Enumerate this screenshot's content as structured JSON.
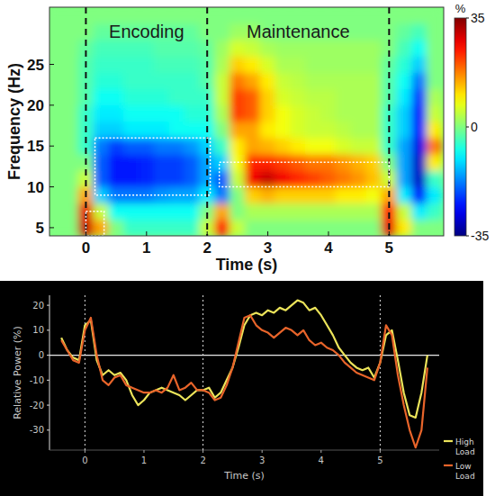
{
  "chart_data": [
    {
      "type": "heatmap",
      "x_label": "Time (s)",
      "y_label": "Frequency (Hz)",
      "xlim": [
        -0.6,
        5.9
      ],
      "xticks": [
        0,
        1,
        2,
        3,
        4,
        5
      ],
      "ylim": [
        4,
        32
      ],
      "yticks": [
        5,
        10,
        15,
        20,
        25
      ],
      "x": [
        -0.5,
        -0.25,
        0,
        0.25,
        0.5,
        0.75,
        1,
        1.25,
        1.5,
        1.75,
        2,
        2.25,
        2.5,
        2.75,
        3,
        3.25,
        3.5,
        3.75,
        4,
        4.25,
        4.5,
        4.75,
        5,
        5.25,
        5.5,
        5.75
      ],
      "y": [
        5,
        7,
        9,
        11,
        13,
        15,
        17,
        19,
        21,
        23,
        25,
        27,
        29,
        31
      ],
      "cells": [
        [
          0,
          0,
          30,
          15,
          0,
          -5,
          -5,
          -5,
          -5,
          -5,
          5,
          25,
          5,
          0,
          0,
          0,
          0,
          0,
          0,
          0,
          0,
          0,
          28,
          10,
          0,
          0
        ],
        [
          0,
          0,
          28,
          5,
          -8,
          -8,
          -8,
          -8,
          -8,
          -8,
          0,
          15,
          0,
          3,
          3,
          3,
          3,
          3,
          3,
          3,
          3,
          3,
          25,
          5,
          -10,
          -5
        ],
        [
          0,
          0,
          15,
          -12,
          -18,
          -18,
          -18,
          -16,
          -15,
          -15,
          -10,
          -18,
          0,
          12,
          14,
          12,
          12,
          12,
          12,
          10,
          10,
          8,
          15,
          -10,
          -25,
          -10
        ],
        [
          0,
          0,
          5,
          -20,
          -25,
          -25,
          -24,
          -22,
          -22,
          -20,
          -15,
          -20,
          5,
          27,
          30,
          27,
          24,
          22,
          20,
          18,
          16,
          13,
          5,
          -15,
          -30,
          -5
        ],
        [
          0,
          0,
          0,
          -20,
          -25,
          -25,
          -24,
          -22,
          -22,
          -20,
          -15,
          -12,
          8,
          24,
          24,
          22,
          20,
          18,
          18,
          16,
          14,
          12,
          0,
          -15,
          -30,
          10
        ],
        [
          0,
          0,
          -5,
          -18,
          -22,
          -20,
          -20,
          -18,
          -18,
          -16,
          -12,
          -5,
          10,
          15,
          14,
          12,
          10,
          8,
          8,
          6,
          5,
          5,
          -5,
          -15,
          -28,
          18
        ],
        [
          0,
          0,
          -5,
          -12,
          -12,
          -10,
          -10,
          -10,
          -8,
          -8,
          -8,
          0,
          15,
          15,
          10,
          8,
          6,
          5,
          5,
          4,
          3,
          3,
          -5,
          -12,
          -25,
          10
        ],
        [
          0,
          0,
          -5,
          -10,
          -10,
          -8,
          -8,
          -8,
          -8,
          -6,
          -6,
          3,
          22,
          20,
          12,
          8,
          6,
          5,
          4,
          3,
          3,
          3,
          -5,
          -12,
          -25,
          5
        ],
        [
          0,
          0,
          -3,
          -8,
          -8,
          -6,
          -6,
          -6,
          -5,
          -5,
          -5,
          5,
          22,
          20,
          12,
          6,
          5,
          4,
          4,
          3,
          3,
          3,
          -3,
          -10,
          -22,
          3
        ],
        [
          0,
          0,
          -3,
          -6,
          -6,
          -5,
          -5,
          -5,
          -5,
          -5,
          -3,
          5,
          18,
          15,
          10,
          5,
          4,
          3,
          3,
          3,
          3,
          3,
          -3,
          -8,
          -18,
          0
        ],
        [
          0,
          0,
          -3,
          -5,
          -5,
          -5,
          -5,
          -4,
          -4,
          -4,
          -3,
          3,
          12,
          10,
          6,
          3,
          3,
          2,
          2,
          2,
          2,
          2,
          -2,
          -6,
          -12,
          0
        ],
        [
          0,
          0,
          -2,
          -4,
          -4,
          -4,
          -4,
          -3,
          -3,
          -3,
          -2,
          2,
          6,
          5,
          3,
          2,
          2,
          2,
          2,
          2,
          2,
          2,
          0,
          -4,
          -8,
          0
        ],
        [
          0,
          0,
          0,
          -2,
          -2,
          -2,
          -2,
          -2,
          -2,
          -2,
          0,
          0,
          2,
          2,
          0,
          0,
          0,
          0,
          0,
          0,
          0,
          0,
          0,
          -2,
          -4,
          0
        ],
        [
          0,
          0,
          0,
          0,
          0,
          0,
          0,
          0,
          0,
          0,
          0,
          0,
          0,
          0,
          0,
          0,
          0,
          0,
          0,
          0,
          0,
          0,
          0,
          0,
          0,
          0
        ]
      ],
      "colorbar": {
        "range": [
          -35,
          35
        ],
        "ticks": [
          -35,
          0,
          35
        ],
        "label": "%"
      },
      "vlines": [
        0,
        2,
        5
      ],
      "rois": [
        {
          "x": [
            0.15,
            2.05
          ],
          "y": [
            9,
            16
          ]
        },
        {
          "x": [
            2.2,
            5
          ],
          "y": [
            10,
            13
          ]
        },
        {
          "x": [
            0,
            0.3
          ],
          "y": [
            4,
            7
          ]
        }
      ],
      "annotations": [
        {
          "text": "Encoding",
          "x": 1
        },
        {
          "text": "Maintenance",
          "x": 3.5
        }
      ]
    },
    {
      "type": "line",
      "x_label": "Time (s)",
      "y_label": "Relative Power (%)",
      "xlim": [
        -0.6,
        6.0
      ],
      "xticks": [
        0,
        1,
        2,
        3,
        4,
        5
      ],
      "ylim": [
        -38,
        24
      ],
      "yticks": [
        20,
        10,
        0,
        -10,
        -20,
        -30
      ],
      "vlines": [
        0,
        2,
        5
      ],
      "hlines": [
        0
      ],
      "legend": "lower right",
      "x": [
        -0.4,
        -0.3,
        -0.2,
        -0.1,
        0,
        0.1,
        0.2,
        0.3,
        0.4,
        0.5,
        0.6,
        0.7,
        0.8,
        0.9,
        1,
        1.1,
        1.2,
        1.3,
        1.4,
        1.5,
        1.6,
        1.7,
        1.8,
        1.9,
        2,
        2.1,
        2.2,
        2.3,
        2.4,
        2.5,
        2.6,
        2.7,
        2.8,
        2.9,
        3,
        3.1,
        3.2,
        3.3,
        3.4,
        3.5,
        3.6,
        3.7,
        3.8,
        3.9,
        4,
        4.1,
        4.2,
        4.3,
        4.4,
        4.5,
        4.6,
        4.7,
        4.8,
        4.9,
        5,
        5.1,
        5.2,
        5.3,
        5.4,
        5.5,
        5.6,
        5.7,
        5.8
      ],
      "series": [
        {
          "name": "High Load",
          "color": "#ece45a",
          "values": [
            7,
            2,
            -1,
            -2,
            12,
            14,
            -2,
            -8,
            -6,
            -8,
            -7,
            -10,
            -16,
            -20,
            -18,
            -15,
            -14,
            -13,
            -14,
            -15,
            -16,
            -18,
            -16,
            -14,
            -14,
            -13,
            -17,
            -15,
            -10,
            -5,
            3,
            12,
            16,
            17,
            16,
            18,
            17,
            19,
            18,
            20,
            22,
            21,
            18,
            19,
            16,
            12,
            8,
            3,
            0,
            -3,
            -5,
            -6,
            -5,
            -9,
            -3,
            8,
            10,
            -2,
            -15,
            -24,
            -25,
            -15,
            0
          ]
        },
        {
          "name": "Low Load",
          "color": "#e8642a",
          "values": [
            6,
            2,
            -2,
            -3,
            10,
            15,
            0,
            -10,
            -12,
            -9,
            -8,
            -12,
            -13,
            -14,
            -15,
            -15,
            -14,
            -15,
            -13,
            -8,
            -14,
            -13,
            -11,
            -14,
            -14,
            -15,
            -18,
            -17,
            -12,
            -5,
            5,
            15,
            16,
            12,
            10,
            9,
            7,
            9,
            11,
            10,
            8,
            10,
            6,
            4,
            5,
            3,
            2,
            0,
            -3,
            -5,
            -7,
            -8,
            -9,
            -10,
            -3,
            12,
            8,
            -8,
            -20,
            -30,
            -37,
            -30,
            -5
          ]
        }
      ]
    }
  ]
}
